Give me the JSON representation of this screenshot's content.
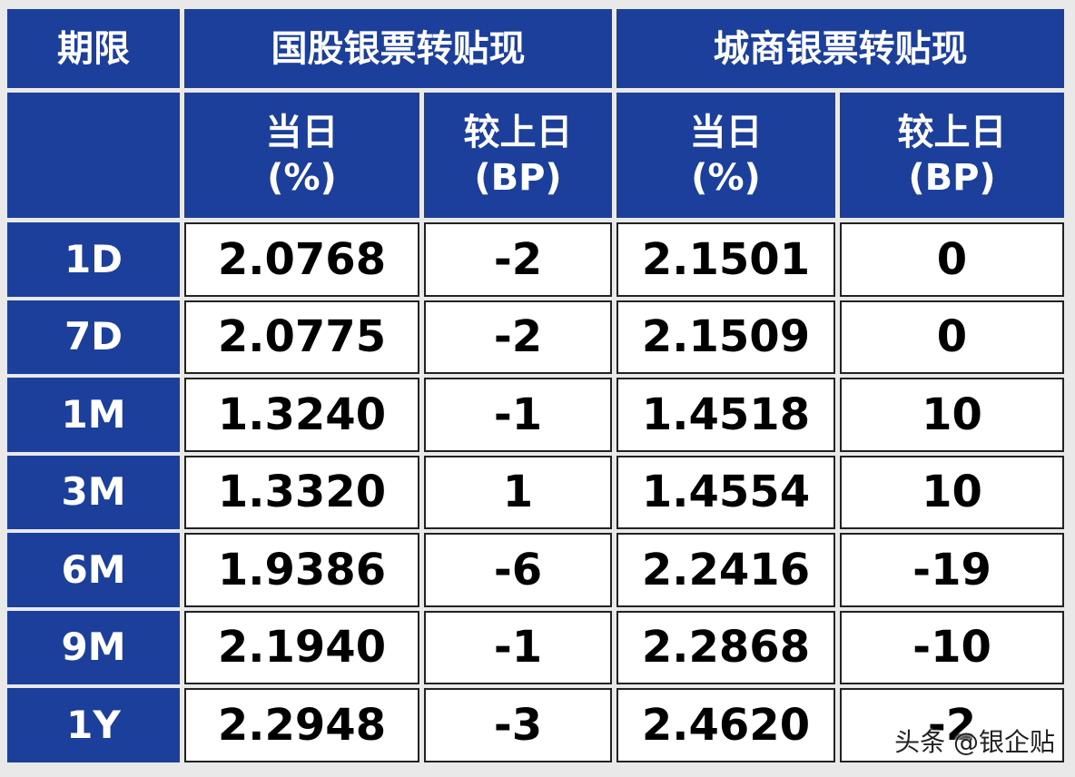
{
  "table": {
    "header": {
      "period": "期限",
      "group1": "国股银票转贴现",
      "group2": "城商银票转贴现"
    },
    "sub_headers": [
      {
        "line1": "当日",
        "line2": "(%)"
      },
      {
        "line1": "较上日",
        "line2": "(BP)"
      },
      {
        "line1": "当日",
        "line2": "(%)"
      },
      {
        "line1": "较上日",
        "line2": "(BP)"
      }
    ],
    "rows": [
      {
        "term": "1D",
        "cells": [
          "2.0768",
          "-2",
          "2.1501",
          "0"
        ]
      },
      {
        "term": "7D",
        "cells": [
          "2.0775",
          "-2",
          "2.1509",
          "0"
        ]
      },
      {
        "term": "1M",
        "cells": [
          "1.3240",
          "-1",
          "1.4518",
          "10"
        ]
      },
      {
        "term": "3M",
        "cells": [
          "1.3320",
          "1",
          "1.4554",
          "10"
        ]
      },
      {
        "term": "6M",
        "cells": [
          "1.9386",
          "-6",
          "2.2416",
          "-19"
        ]
      },
      {
        "term": "9M",
        "cells": [
          "2.1940",
          "-1",
          "2.2868",
          "-10"
        ]
      },
      {
        "term": "1Y",
        "cells": [
          "2.2948",
          "-3",
          "2.4620",
          "-2"
        ]
      }
    ]
  },
  "watermark": "头条 @银企贴"
}
